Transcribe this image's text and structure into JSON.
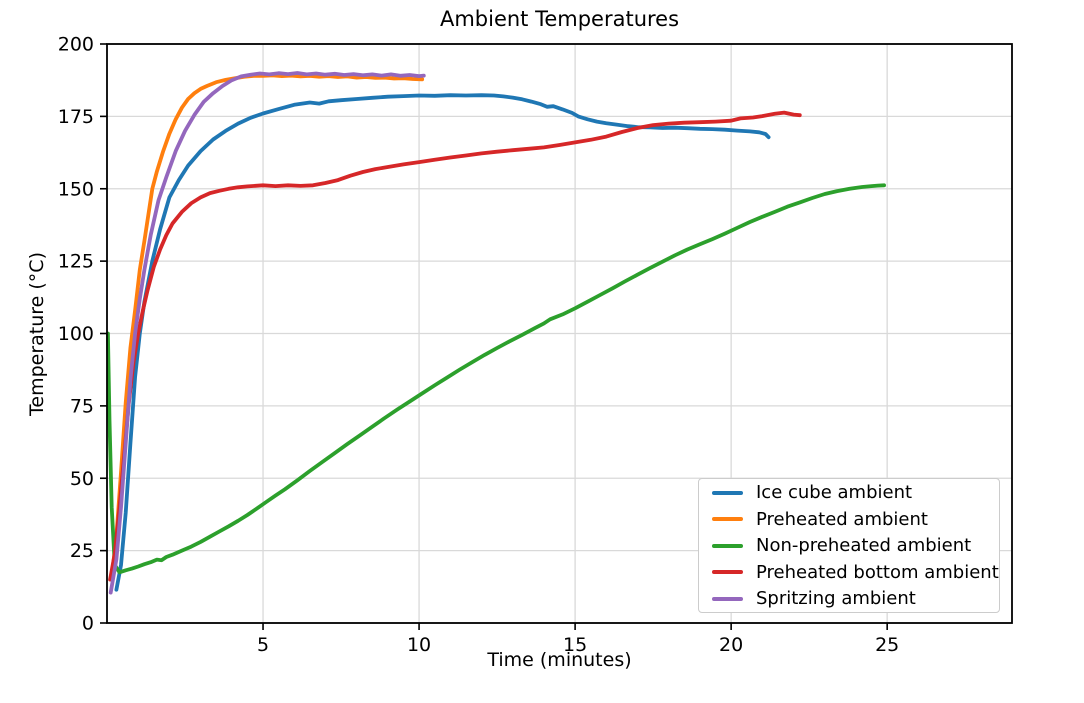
{
  "chart_data": {
    "type": "line",
    "title": "Ambient Temperatures",
    "xlabel": "Time (minutes)",
    "ylabel": "Temperature (°C)",
    "xlim": [
      0,
      29
    ],
    "ylim": [
      0,
      200
    ],
    "x_ticks": [
      5,
      10,
      15,
      20,
      25
    ],
    "y_ticks": [
      0,
      25,
      50,
      75,
      100,
      125,
      150,
      175,
      200
    ],
    "grid": true,
    "legend_position": "lower right",
    "series": [
      {
        "name": "Ice cube ambient",
        "color": "#1f77b4",
        "points": [
          [
            0.3,
            11.5
          ],
          [
            0.45,
            20
          ],
          [
            0.6,
            38
          ],
          [
            0.75,
            62
          ],
          [
            0.9,
            85
          ],
          [
            1.05,
            100
          ],
          [
            1.2,
            111
          ],
          [
            1.45,
            125
          ],
          [
            1.7,
            136
          ],
          [
            2.0,
            147
          ],
          [
            2.3,
            153
          ],
          [
            2.6,
            158
          ],
          [
            3.0,
            163
          ],
          [
            3.4,
            167
          ],
          [
            3.8,
            170
          ],
          [
            4.2,
            172.5
          ],
          [
            4.6,
            174.5
          ],
          [
            5.0,
            176
          ],
          [
            5.5,
            177.5
          ],
          [
            6.0,
            179
          ],
          [
            6.5,
            179.8
          ],
          [
            6.8,
            179.4
          ],
          [
            7.1,
            180.2
          ],
          [
            7.5,
            180.6
          ],
          [
            8.0,
            181
          ],
          [
            8.5,
            181.4
          ],
          [
            9.0,
            181.8
          ],
          [
            9.5,
            182
          ],
          [
            10.0,
            182.2
          ],
          [
            10.5,
            182.1
          ],
          [
            11.0,
            182.3
          ],
          [
            11.5,
            182.2
          ],
          [
            12.0,
            182.3
          ],
          [
            12.4,
            182.2
          ],
          [
            12.7,
            181.9
          ],
          [
            13.0,
            181.5
          ],
          [
            13.3,
            180.9
          ],
          [
            13.6,
            180.1
          ],
          [
            13.9,
            179.2
          ],
          [
            14.1,
            178.3
          ],
          [
            14.3,
            178.5
          ],
          [
            14.6,
            177.4
          ],
          [
            14.9,
            176.2
          ],
          [
            15.1,
            175
          ],
          [
            15.4,
            174
          ],
          [
            15.7,
            173.2
          ],
          [
            16.0,
            172.6
          ],
          [
            16.3,
            172.2
          ],
          [
            16.7,
            171.6
          ],
          [
            17.0,
            171.3
          ],
          [
            17.4,
            171.2
          ],
          [
            17.8,
            171.0
          ],
          [
            18.2,
            171.1
          ],
          [
            18.6,
            170.9
          ],
          [
            19.0,
            170.7
          ],
          [
            19.4,
            170.6
          ],
          [
            19.8,
            170.4
          ],
          [
            20.2,
            170.1
          ],
          [
            20.6,
            169.8
          ],
          [
            20.9,
            169.5
          ],
          [
            21.1,
            168.9
          ],
          [
            21.2,
            167.8
          ]
        ]
      },
      {
        "name": "Preheated ambient",
        "color": "#ff7f0e",
        "points": [
          [
            0.15,
            16
          ],
          [
            0.3,
            30
          ],
          [
            0.45,
            52
          ],
          [
            0.6,
            76
          ],
          [
            0.75,
            95
          ],
          [
            0.9,
            108
          ],
          [
            1.05,
            122
          ],
          [
            1.2,
            132
          ],
          [
            1.45,
            150
          ],
          [
            1.6,
            156
          ],
          [
            1.8,
            163
          ],
          [
            2.0,
            169
          ],
          [
            2.2,
            174
          ],
          [
            2.4,
            178
          ],
          [
            2.6,
            181
          ],
          [
            2.8,
            183
          ],
          [
            3.0,
            184.5
          ],
          [
            3.2,
            185.5
          ],
          [
            3.5,
            186.8
          ],
          [
            3.8,
            187.6
          ],
          [
            4.1,
            188.2
          ],
          [
            4.4,
            188.7
          ],
          [
            4.7,
            189
          ],
          [
            5.0,
            189
          ],
          [
            5.3,
            189.2
          ],
          [
            5.6,
            188.9
          ],
          [
            5.9,
            189.1
          ],
          [
            6.2,
            188.8
          ],
          [
            6.5,
            189
          ],
          [
            6.8,
            188.7
          ],
          [
            7.1,
            188.9
          ],
          [
            7.4,
            188.6
          ],
          [
            7.7,
            188.8
          ],
          [
            8.0,
            188.4
          ],
          [
            8.3,
            188.6
          ],
          [
            8.6,
            188.3
          ],
          [
            8.9,
            188.4
          ],
          [
            9.2,
            188.1
          ],
          [
            9.5,
            188.2
          ],
          [
            9.8,
            187.9
          ],
          [
            10.1,
            187.8
          ]
        ]
      },
      {
        "name": "Non-preheated ambient",
        "color": "#2ca02c",
        "points": [
          [
            0.03,
            100
          ],
          [
            0.08,
            70
          ],
          [
            0.15,
            40
          ],
          [
            0.25,
            20
          ],
          [
            0.4,
            17.5
          ],
          [
            0.6,
            18.2
          ],
          [
            0.8,
            18.8
          ],
          [
            1.0,
            19.5
          ],
          [
            1.2,
            20.3
          ],
          [
            1.4,
            21
          ],
          [
            1.6,
            21.9
          ],
          [
            1.75,
            21.7
          ],
          [
            1.9,
            22.8
          ],
          [
            2.1,
            23.6
          ],
          [
            2.4,
            25
          ],
          [
            2.7,
            26.4
          ],
          [
            3.0,
            28
          ],
          [
            3.3,
            29.8
          ],
          [
            3.6,
            31.6
          ],
          [
            3.9,
            33.4
          ],
          [
            4.2,
            35.3
          ],
          [
            4.5,
            37.3
          ],
          [
            4.8,
            39.5
          ],
          [
            5.1,
            41.8
          ],
          [
            5.4,
            44
          ],
          [
            5.7,
            46.2
          ],
          [
            6.1,
            49.3
          ],
          [
            6.5,
            52.5
          ],
          [
            6.9,
            55.6
          ],
          [
            7.3,
            58.7
          ],
          [
            7.7,
            61.8
          ],
          [
            8.1,
            64.8
          ],
          [
            8.5,
            67.8
          ],
          [
            8.9,
            70.8
          ],
          [
            9.3,
            73.7
          ],
          [
            9.7,
            76.5
          ],
          [
            10.1,
            79.3
          ],
          [
            10.5,
            82.1
          ],
          [
            10.9,
            84.8
          ],
          [
            11.3,
            87.5
          ],
          [
            11.7,
            90.1
          ],
          [
            12.1,
            92.6
          ],
          [
            12.5,
            95
          ],
          [
            12.9,
            97.3
          ],
          [
            13.3,
            99.5
          ],
          [
            13.7,
            101.8
          ],
          [
            14.0,
            103.5
          ],
          [
            14.2,
            104.9
          ],
          [
            14.6,
            106.6
          ],
          [
            15.0,
            108.7
          ],
          [
            15.4,
            111
          ],
          [
            15.8,
            113.3
          ],
          [
            16.2,
            115.6
          ],
          [
            16.6,
            118
          ],
          [
            17.0,
            120.3
          ],
          [
            17.4,
            122.6
          ],
          [
            17.8,
            124.8
          ],
          [
            18.2,
            127
          ],
          [
            18.6,
            129
          ],
          [
            19.0,
            130.8
          ],
          [
            19.4,
            132.6
          ],
          [
            19.8,
            134.5
          ],
          [
            20.2,
            136.5
          ],
          [
            20.6,
            138.5
          ],
          [
            21.0,
            140.3
          ],
          [
            21.4,
            142
          ],
          [
            21.8,
            143.8
          ],
          [
            22.2,
            145.3
          ],
          [
            22.6,
            146.8
          ],
          [
            23.0,
            148.2
          ],
          [
            23.4,
            149.2
          ],
          [
            23.8,
            150
          ],
          [
            24.2,
            150.6
          ],
          [
            24.5,
            150.9
          ],
          [
            24.7,
            151.1
          ],
          [
            24.9,
            151.2
          ]
        ]
      },
      {
        "name": "Preheated bottom ambient",
        "color": "#d62728",
        "points": [
          [
            0.1,
            15
          ],
          [
            0.25,
            24
          ],
          [
            0.4,
            40
          ],
          [
            0.55,
            58
          ],
          [
            0.7,
            76
          ],
          [
            0.85,
            90
          ],
          [
            1.0,
            100
          ],
          [
            1.15,
            108
          ],
          [
            1.3,
            115
          ],
          [
            1.5,
            123
          ],
          [
            1.7,
            129
          ],
          [
            1.9,
            134
          ],
          [
            2.1,
            138
          ],
          [
            2.4,
            142
          ],
          [
            2.7,
            145
          ],
          [
            3.0,
            147
          ],
          [
            3.3,
            148.5
          ],
          [
            3.6,
            149.3
          ],
          [
            3.9,
            150
          ],
          [
            4.2,
            150.5
          ],
          [
            4.5,
            150.8
          ],
          [
            5.0,
            151.2
          ],
          [
            5.4,
            150.9
          ],
          [
            5.8,
            151.2
          ],
          [
            6.2,
            151
          ],
          [
            6.6,
            151.2
          ],
          [
            7.0,
            152
          ],
          [
            7.4,
            153
          ],
          [
            7.8,
            154.5
          ],
          [
            8.2,
            155.8
          ],
          [
            8.6,
            156.8
          ],
          [
            9.0,
            157.5
          ],
          [
            9.5,
            158.4
          ],
          [
            10.0,
            159.2
          ],
          [
            10.5,
            160
          ],
          [
            11.0,
            160.8
          ],
          [
            11.5,
            161.5
          ],
          [
            12.0,
            162.2
          ],
          [
            12.5,
            162.8
          ],
          [
            13.0,
            163.3
          ],
          [
            13.5,
            163.8
          ],
          [
            14.0,
            164.3
          ],
          [
            14.5,
            165.1
          ],
          [
            15.0,
            166
          ],
          [
            15.5,
            166.9
          ],
          [
            16.0,
            168
          ],
          [
            16.5,
            169.6
          ],
          [
            17.0,
            171
          ],
          [
            17.5,
            172
          ],
          [
            18.0,
            172.5
          ],
          [
            18.5,
            172.8
          ],
          [
            19.0,
            173
          ],
          [
            19.5,
            173.2
          ],
          [
            20.0,
            173.5
          ],
          [
            20.3,
            174.3
          ],
          [
            20.7,
            174.6
          ],
          [
            21.0,
            175.1
          ],
          [
            21.4,
            175.9
          ],
          [
            21.7,
            176.3
          ],
          [
            22.0,
            175.6
          ],
          [
            22.2,
            175.4
          ]
        ]
      },
      {
        "name": "Spritzing ambient",
        "color": "#9467bd",
        "points": [
          [
            0.12,
            10.5
          ],
          [
            0.3,
            22
          ],
          [
            0.45,
            40
          ],
          [
            0.6,
            62
          ],
          [
            0.75,
            84
          ],
          [
            0.9,
            100
          ],
          [
            1.05,
            112
          ],
          [
            1.2,
            122
          ],
          [
            1.4,
            134
          ],
          [
            1.65,
            146
          ],
          [
            1.9,
            154
          ],
          [
            2.2,
            163
          ],
          [
            2.5,
            170
          ],
          [
            2.8,
            175.5
          ],
          [
            3.1,
            180
          ],
          [
            3.4,
            183
          ],
          [
            3.7,
            185.5
          ],
          [
            4.0,
            187.5
          ],
          [
            4.3,
            188.8
          ],
          [
            4.6,
            189.4
          ],
          [
            4.9,
            189.8
          ],
          [
            5.2,
            189.5
          ],
          [
            5.5,
            189.9
          ],
          [
            5.8,
            189.6
          ],
          [
            6.1,
            190
          ],
          [
            6.4,
            189.5
          ],
          [
            6.7,
            189.8
          ],
          [
            7.0,
            189.4
          ],
          [
            7.3,
            189.7
          ],
          [
            7.6,
            189.3
          ],
          [
            7.9,
            189.6
          ],
          [
            8.2,
            189.2
          ],
          [
            8.5,
            189.5
          ],
          [
            8.8,
            189.1
          ],
          [
            9.1,
            189.5
          ],
          [
            9.4,
            189.0
          ],
          [
            9.7,
            189.3
          ],
          [
            10.0,
            188.9
          ],
          [
            10.15,
            189.1
          ]
        ]
      }
    ]
  },
  "style_colors": {
    "grid": "#d9d9d9",
    "spine": "#000000",
    "tick_text": "#000000",
    "legend_border": "#cccccc",
    "background": "#ffffff"
  }
}
